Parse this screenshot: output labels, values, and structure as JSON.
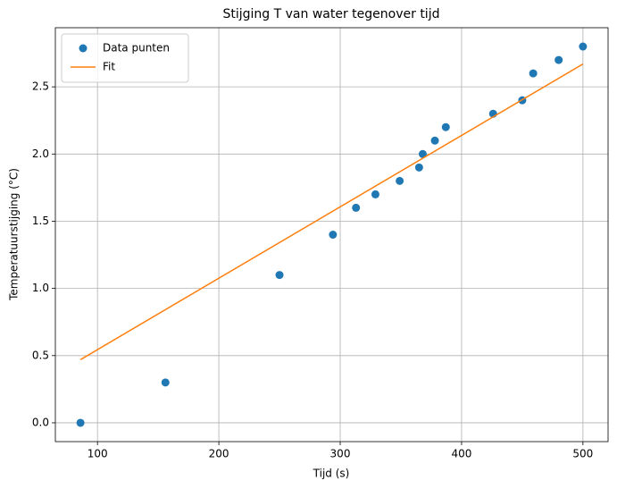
{
  "chart_data": {
    "type": "scatter",
    "title": "Stijging T van water tegenover tijd",
    "xlabel": "Tijd (s)",
    "ylabel": "Temperatuurstijging (°C)",
    "series": [
      {
        "name": "Data punten",
        "color": "#1f77b4",
        "mode": "markers",
        "x": [
          86,
          156,
          250,
          294,
          313,
          329,
          349,
          365,
          368,
          378,
          387,
          426,
          450,
          459,
          480,
          500
        ],
        "values": [
          0.0,
          0.3,
          1.1,
          1.4,
          1.6,
          1.7,
          1.8,
          1.9,
          2.0,
          2.1,
          2.2,
          2.3,
          2.4,
          2.6,
          2.7,
          2.8
        ]
      },
      {
        "name": "Fit",
        "color": "#ff7f0e",
        "mode": "line",
        "x": [
          86,
          500
        ],
        "values": [
          0.47,
          2.67
        ]
      }
    ],
    "xlim": [
      65.3,
      520.7
    ],
    "xticks": [
      100,
      200,
      300,
      400,
      500
    ],
    "ylim": [
      -0.14,
      2.94
    ],
    "yticks": [
      {
        "value": 0,
        "label": "0.0"
      },
      0.5,
      {
        "value": 1,
        "label": "1.0"
      },
      1.5,
      {
        "value": 2,
        "label": "2.0"
      },
      2.5
    ],
    "grid": true,
    "legend": "upper left"
  }
}
